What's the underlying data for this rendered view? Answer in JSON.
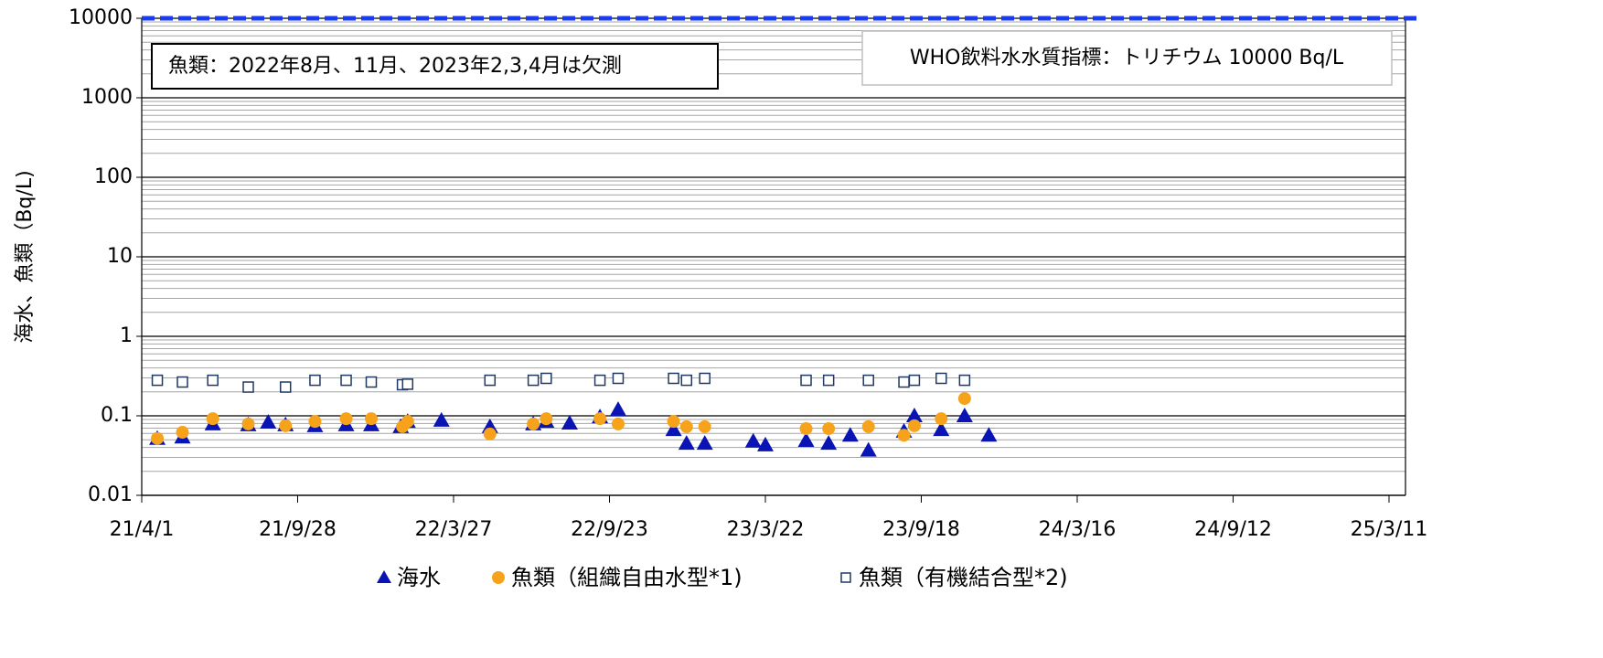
{
  "chart_data": {
    "type": "scatter",
    "y_label": "海水、魚類（Bq/L)",
    "log_y": true,
    "grid": true,
    "legend": "bottom",
    "xlim": [
      "2021-04-01",
      "2025-03-30"
    ],
    "xticks": [
      {
        "value": "2021-04-01",
        "label": "21/4/1"
      },
      {
        "value": "2021-09-28",
        "label": "21/9/28"
      },
      {
        "value": "2022-03-27",
        "label": "22/3/27"
      },
      {
        "value": "2022-09-23",
        "label": "22/9/23"
      },
      {
        "value": "2023-03-22",
        "label": "23/3/22"
      },
      {
        "value": "2023-09-18",
        "label": "23/9/18"
      },
      {
        "value": "2024-03-16",
        "label": "24/3/16"
      },
      {
        "value": "2024-09-12",
        "label": "24/9/12"
      },
      {
        "value": "2025-03-11",
        "label": "25/3/11"
      }
    ],
    "ylim": [
      0.01,
      10000
    ],
    "yticks": [
      0.01,
      0.1,
      1,
      10,
      100,
      1000,
      10000
    ],
    "reference_line": {
      "value": 10000,
      "color": "#1a3cf0"
    },
    "annotations": [
      "魚類：2022年8月、11月、2023年2,3,4月は欠測",
      "WHO飲料水水質指標：トリチウム 10000 Bq/L"
    ],
    "series": [
      {
        "name": "海水",
        "color": "#0a14b4",
        "marker": "triangle",
        "x": [
          "2021-04-19",
          "2021-05-18",
          "2021-06-22",
          "2021-08-02",
          "2021-08-25",
          "2021-09-14",
          "2021-10-18",
          "2021-11-23",
          "2021-12-22",
          "2022-01-25",
          "2022-02-02",
          "2022-03-13",
          "2022-05-08",
          "2022-06-27",
          "2022-07-12",
          "2022-08-08",
          "2022-09-12",
          "2022-10-03",
          "2022-12-06",
          "2022-12-21",
          "2023-01-11",
          "2023-03-08",
          "2023-03-22",
          "2023-05-08",
          "2023-06-03",
          "2023-06-28",
          "2023-07-19",
          "2023-08-29",
          "2023-09-10",
          "2023-10-11",
          "2023-11-07",
          "2023-12-05"
        ],
        "values": [
          0.052,
          0.054,
          0.079,
          0.077,
          0.083,
          0.077,
          0.075,
          0.077,
          0.077,
          0.073,
          0.085,
          0.088,
          0.073,
          0.079,
          0.085,
          0.081,
          0.097,
          0.12,
          0.067,
          0.045,
          0.045,
          0.048,
          0.043,
          0.049,
          0.045,
          0.057,
          0.037,
          0.064,
          0.1,
          0.067,
          0.1,
          0.057
        ]
      },
      {
        "name": "魚類（組織自由水型*1)",
        "color": "#f7a21b",
        "marker": "circle",
        "x": [
          "2021-04-19",
          "2021-05-18",
          "2021-06-22",
          "2021-08-02",
          "2021-09-14",
          "2021-10-18",
          "2021-11-23",
          "2021-12-22",
          "2022-01-27",
          "2022-02-02",
          "2022-05-08",
          "2022-06-27",
          "2022-07-12",
          "2022-09-12",
          "2022-10-03",
          "2022-12-06",
          "2022-12-21",
          "2023-01-11",
          "2023-05-08",
          "2023-06-03",
          "2023-07-19",
          "2023-08-29",
          "2023-09-10",
          "2023-10-11",
          "2023-11-07"
        ],
        "values": [
          0.052,
          0.062,
          0.092,
          0.079,
          0.075,
          0.085,
          0.092,
          0.092,
          0.073,
          0.085,
          0.059,
          0.079,
          0.092,
          0.092,
          0.079,
          0.085,
          0.073,
          0.073,
          0.069,
          0.069,
          0.073,
          0.057,
          0.075,
          0.092,
          0.165
        ]
      },
      {
        "name": "魚類（有機結合型*2)",
        "color": "#1f3864",
        "marker": "square",
        "x": [
          "2021-04-19",
          "2021-05-18",
          "2021-06-22",
          "2021-08-02",
          "2021-09-14",
          "2021-10-18",
          "2021-11-23",
          "2021-12-22",
          "2022-01-27",
          "2022-02-02",
          "2022-05-08",
          "2022-06-27",
          "2022-07-12",
          "2022-09-12",
          "2022-10-03",
          "2022-12-06",
          "2022-12-21",
          "2023-01-11",
          "2023-05-08",
          "2023-06-03",
          "2023-07-19",
          "2023-08-29",
          "2023-09-10",
          "2023-10-11",
          "2023-11-07"
        ],
        "values": [
          0.28,
          0.266,
          0.28,
          0.23,
          0.23,
          0.28,
          0.28,
          0.266,
          0.246,
          0.25,
          0.28,
          0.28,
          0.296,
          0.28,
          0.296,
          0.296,
          0.28,
          0.296,
          0.28,
          0.28,
          0.28,
          0.266,
          0.28,
          0.296,
          0.28
        ]
      }
    ]
  }
}
